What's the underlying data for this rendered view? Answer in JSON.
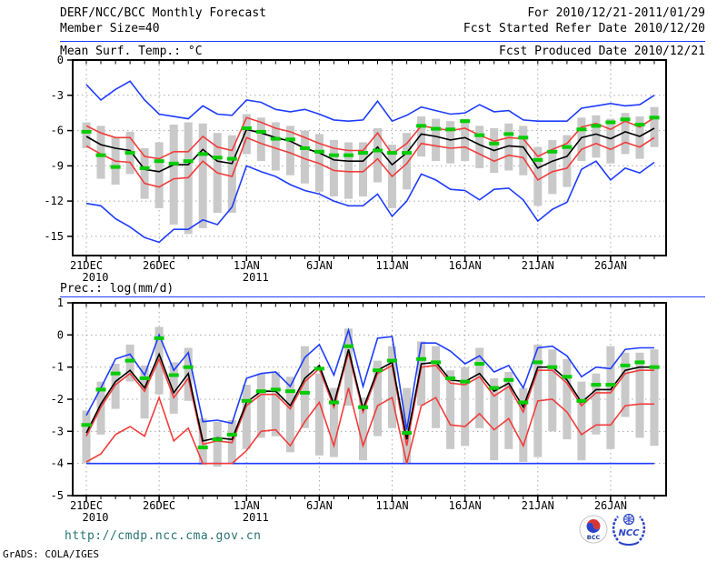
{
  "header": {
    "title": "DERF/NCC/BCC Monthly Forecast",
    "for_range": "For 2010/12/21-2011/01/29",
    "member_size": "Member Size=40",
    "fcst_started": "Fcst Started Refer Date 2010/12/20",
    "fcst_produced": "Fcst Produced Date 2010/12/21"
  },
  "footer": {
    "url": "http://cmdp.ncc.cma.gov.cn",
    "grads_credit": "GrADS: COLA/IGES",
    "logos": {
      "bcc": "BCC",
      "ncc": "NCC"
    }
  },
  "colors": {
    "line_blue": "#1e3cff",
    "line_red": "#f23c3c",
    "line_black": "#000000",
    "marker_green": "#00cc00",
    "bar_gray": "#c9c9c9",
    "grid_gray": "#a8a8a8",
    "rule_blue": "#1e3cff",
    "url_teal": "#2a7474"
  },
  "chart_data": [
    {
      "id": "temp",
      "type": "line",
      "title": "Mean Surf. Temp.: °C",
      "xlabel": "",
      "ylabel": "",
      "grid": true,
      "legend_position": "none",
      "n_days": 40,
      "ylim": [
        0,
        -16.63
      ],
      "y_ticks": [
        0,
        -3,
        -6,
        -9,
        -12,
        -15
      ],
      "y_gridlines": [
        -3,
        -6,
        -9,
        -12,
        -15
      ],
      "x_ticks": [
        {
          "i": 0,
          "label": "21DEC",
          "sub": "2010"
        },
        {
          "i": 5,
          "label": "26DEC"
        },
        {
          "i": 11,
          "label": "1JAN",
          "sub": "2011"
        },
        {
          "i": 16,
          "label": "6JAN"
        },
        {
          "i": 21,
          "label": "11JAN"
        },
        {
          "i": 26,
          "label": "16JAN"
        },
        {
          "i": 31,
          "label": "21JAN"
        },
        {
          "i": 36,
          "label": "26JAN"
        }
      ],
      "series": [
        {
          "id": "ens-max",
          "label": "ensemble max",
          "color": "#1e3cff",
          "values": [
            -2.1,
            -3.4,
            -2.5,
            -1.8,
            -3.4,
            -4.6,
            -4.8,
            -5.0,
            -3.9,
            -4.6,
            -4.7,
            -3.4,
            -3.6,
            -4.2,
            -4.4,
            -4.2,
            -4.6,
            -5.1,
            -5.2,
            -5.1,
            -3.5,
            -5.2,
            -4.7,
            -4.0,
            -4.3,
            -4.6,
            -4.5,
            -3.8,
            -4.4,
            -4.3,
            -5.1,
            -5.2,
            -5.2,
            -5.2,
            -4.1,
            -3.9,
            -3.7,
            -3.9,
            -3.8,
            -3.0
          ]
        },
        {
          "id": "ens-min",
          "label": "ensemble min",
          "color": "#1e3cff",
          "values": [
            -12.2,
            -12.4,
            -13.5,
            -14.2,
            -15.1,
            -15.5,
            -14.4,
            -14.4,
            -13.6,
            -14.0,
            -12.5,
            -9.0,
            -9.5,
            -9.9,
            -10.6,
            -11.1,
            -11.4,
            -12.0,
            -12.4,
            -12.4,
            -11.4,
            -13.3,
            -12.0,
            -9.7,
            -10.2,
            -11.0,
            -11.1,
            -11.9,
            -11.0,
            -10.9,
            -11.9,
            -13.7,
            -12.7,
            -12.1,
            -9.3,
            -8.6,
            -10.2,
            -9.2,
            -9.6,
            -8.7
          ]
        },
        {
          "id": "spread-upper",
          "label": "mean plus spread",
          "color": "#f23c3c",
          "values": [
            -5.6,
            -6.2,
            -6.6,
            -6.6,
            -8.2,
            -8.4,
            -7.8,
            -7.8,
            -6.5,
            -7.4,
            -7.7,
            -4.9,
            -5.3,
            -5.8,
            -6.1,
            -6.6,
            -7.1,
            -7.5,
            -7.7,
            -7.7,
            -6.2,
            -8.0,
            -7.1,
            -5.6,
            -5.8,
            -6.0,
            -5.8,
            -6.4,
            -6.9,
            -6.6,
            -6.7,
            -8.2,
            -7.6,
            -7.1,
            -5.7,
            -5.4,
            -5.9,
            -5.2,
            -5.7,
            -4.9
          ]
        },
        {
          "id": "spread-lower",
          "label": "mean minus spread",
          "color": "#f23c3c",
          "values": [
            -7.3,
            -8.0,
            -8.6,
            -8.7,
            -10.5,
            -10.8,
            -10.1,
            -10.0,
            -8.6,
            -9.6,
            -9.9,
            -6.6,
            -7.1,
            -7.5,
            -7.9,
            -8.4,
            -8.8,
            -9.4,
            -9.5,
            -9.5,
            -8.4,
            -9.9,
            -8.8,
            -7.1,
            -7.3,
            -7.5,
            -7.4,
            -8.0,
            -8.6,
            -8.1,
            -8.3,
            -10.2,
            -9.5,
            -9.2,
            -7.6,
            -7.1,
            -7.6,
            -7.0,
            -7.4,
            -6.6
          ]
        },
        {
          "id": "ens-mean",
          "label": "ensemble mean",
          "color": "#000000",
          "values": [
            -6.5,
            -7.2,
            -7.5,
            -7.7,
            -9.3,
            -9.5,
            -8.9,
            -8.9,
            -7.6,
            -8.6,
            -8.8,
            -5.9,
            -6.2,
            -6.6,
            -6.9,
            -7.5,
            -7.9,
            -8.5,
            -8.6,
            -8.6,
            -7.4,
            -8.9,
            -7.9,
            -6.3,
            -6.5,
            -6.8,
            -6.6,
            -7.2,
            -7.7,
            -7.3,
            -7.4,
            -9.2,
            -8.6,
            -8.2,
            -6.6,
            -6.3,
            -6.7,
            -6.1,
            -6.5,
            -5.8
          ]
        }
      ],
      "markers": {
        "id": "green-dash",
        "label": "green dash marker",
        "color": "#00cc00",
        "values": [
          -6.1,
          -8.1,
          -9.1,
          -7.9,
          -9.2,
          -8.6,
          -8.8,
          -8.6,
          -8.0,
          -8.3,
          -8.4,
          -5.8,
          -6.1,
          -6.7,
          -6.75,
          -7.5,
          -7.8,
          -8.1,
          -8.1,
          -7.9,
          -7.7,
          -7.9,
          -7.9,
          -5.6,
          -5.85,
          -5.9,
          -5.2,
          -6.4,
          -7.1,
          -6.3,
          -6.6,
          -8.5,
          -7.8,
          -7.4,
          -5.9,
          -5.6,
          -5.3,
          -5.05,
          -5.5,
          -4.9
        ]
      },
      "bars": {
        "id": "spread-bar",
        "label": "ensemble spread bar",
        "color": "#c9c9c9",
        "top": [
          -5.3,
          -5.6,
          -6.6,
          -6.1,
          -7.5,
          -7.0,
          -5.5,
          -5.3,
          -5.4,
          -6.2,
          -6.4,
          -4.6,
          -4.9,
          -5.3,
          -5.6,
          -6.0,
          -6.3,
          -6.8,
          -7.0,
          -7.0,
          -5.8,
          -7.2,
          -6.2,
          -4.8,
          -5.0,
          -5.2,
          -5.0,
          -5.6,
          -5.8,
          -5.4,
          -5.6,
          -7.4,
          -6.8,
          -6.4,
          -4.9,
          -4.7,
          -5.0,
          -4.5,
          -4.8,
          -4.0
        ],
        "bottom": [
          -7.5,
          -10.1,
          -10.6,
          -9.7,
          -11.8,
          -12.6,
          -14.0,
          -14.8,
          -14.3,
          -13.0,
          -13.0,
          -8.0,
          -8.6,
          -9.4,
          -9.8,
          -10.5,
          -11.2,
          -11.6,
          -11.8,
          -11.6,
          -10.4,
          -12.6,
          -11.0,
          -8.2,
          -8.6,
          -8.8,
          -8.6,
          -9.2,
          -9.6,
          -9.4,
          -9.8,
          -12.4,
          -11.4,
          -10.8,
          -8.6,
          -8.3,
          -8.8,
          -8.0,
          -8.4,
          -7.4
        ]
      }
    },
    {
      "id": "prec",
      "type": "line",
      "title": "Prec.: log(mm/d)",
      "xlabel": "",
      "ylabel": "",
      "grid": true,
      "legend_position": "none",
      "n_days": 40,
      "ylim": [
        1,
        -5
      ],
      "y_ticks": [
        1,
        0,
        -1,
        -2,
        -3,
        -4,
        -5
      ],
      "y_gridlines": [
        0,
        -1,
        -2,
        -3,
        -4
      ],
      "x_ticks": [
        {
          "i": 0,
          "label": "21DEC",
          "sub": "2010"
        },
        {
          "i": 5,
          "label": "26DEC"
        },
        {
          "i": 11,
          "label": "1JAN",
          "sub": "2011"
        },
        {
          "i": 16,
          "label": "6JAN"
        },
        {
          "i": 21,
          "label": "11JAN"
        },
        {
          "i": 26,
          "label": "16JAN"
        },
        {
          "i": 31,
          "label": "21JAN"
        },
        {
          "i": 36,
          "label": "26JAN"
        }
      ],
      "series": [
        {
          "id": "ens-max",
          "label": "ensemble max",
          "color": "#1e3cff",
          "values": [
            -2.5,
            -1.65,
            -0.75,
            -0.6,
            -1.25,
            0.0,
            -1.1,
            -0.55,
            -2.7,
            -2.65,
            -2.75,
            -1.35,
            -1.2,
            -1.15,
            -1.6,
            -0.7,
            -0.3,
            -1.25,
            0.15,
            -1.6,
            -0.1,
            -0.05,
            -2.95,
            -0.25,
            -0.25,
            -0.5,
            -0.9,
            -0.65,
            -1.15,
            -0.95,
            -1.65,
            -0.4,
            -0.35,
            -0.65,
            -1.3,
            -1.0,
            -1.05,
            -0.45,
            -0.4,
            -0.4
          ]
        },
        {
          "id": "ens-min",
          "label": "ensemble min",
          "color": "#1e3cff",
          "values": [
            -4.0,
            -4.0,
            -4.0,
            -4.0,
            -4.0,
            -4.0,
            -4.0,
            -4.0,
            -4.0,
            -4.0,
            -4.0,
            -4.0,
            -4.0,
            -4.0,
            -4.0,
            -4.0,
            -4.0,
            -4.0,
            -4.0,
            -4.0,
            -4.0,
            -4.0,
            -4.0,
            -4.0,
            -4.0,
            -4.0,
            -4.0,
            -4.0,
            -4.0,
            -4.0,
            -4.0,
            -4.0,
            -4.0,
            -4.0,
            -4.0,
            -4.0,
            -4.0,
            -4.0,
            -4.0,
            -4.0
          ]
        },
        {
          "id": "spread-upper",
          "label": "mean plus spread",
          "color": "#f23c3c",
          "values": [
            -3.15,
            -2.25,
            -1.55,
            -1.2,
            -1.75,
            -0.75,
            -1.95,
            -1.35,
            -3.4,
            -3.3,
            -3.35,
            -2.2,
            -1.85,
            -1.85,
            -2.3,
            -1.45,
            -1.05,
            -2.25,
            -0.55,
            -2.4,
            -1.2,
            -0.95,
            -3.45,
            -1.0,
            -0.95,
            -1.5,
            -1.55,
            -1.3,
            -1.9,
            -1.6,
            -2.4,
            -1.1,
            -1.1,
            -1.5,
            -2.2,
            -1.8,
            -1.8,
            -1.2,
            -1.1,
            -1.1
          ]
        },
        {
          "id": "spread-lower",
          "label": "mean minus spread",
          "color": "#f23c3c",
          "values": [
            -3.95,
            -3.7,
            -3.1,
            -2.85,
            -3.15,
            -1.95,
            -3.3,
            -2.9,
            -4.0,
            -4.0,
            -4.0,
            -3.6,
            -3.0,
            -2.95,
            -3.45,
            -2.7,
            -2.1,
            -3.45,
            -1.65,
            -3.45,
            -2.2,
            -1.95,
            -4.0,
            -2.2,
            -1.95,
            -2.8,
            -2.85,
            -2.45,
            -2.95,
            -2.6,
            -3.45,
            -2.05,
            -2.0,
            -2.4,
            -3.1,
            -2.8,
            -2.8,
            -2.2,
            -2.15,
            -2.15
          ]
        },
        {
          "id": "ens-mean",
          "label": "ensemble mean",
          "color": "#000000",
          "values": [
            -3.05,
            -2.15,
            -1.45,
            -1.1,
            -1.65,
            -0.6,
            -1.8,
            -1.2,
            -3.3,
            -3.2,
            -3.25,
            -2.1,
            -1.75,
            -1.75,
            -2.2,
            -1.35,
            -0.95,
            -2.15,
            -0.45,
            -2.3,
            -1.1,
            -0.85,
            -3.25,
            -0.9,
            -0.85,
            -1.4,
            -1.45,
            -1.2,
            -1.75,
            -1.5,
            -2.25,
            -1.0,
            -1.0,
            -1.4,
            -2.1,
            -1.7,
            -1.7,
            -1.1,
            -1.0,
            -1.0
          ]
        }
      ],
      "markers": {
        "id": "green-dash",
        "label": "green dash marker",
        "color": "#00cc00",
        "values": [
          -2.8,
          -1.7,
          -1.2,
          -0.8,
          -1.35,
          -0.1,
          -1.25,
          -1.0,
          -3.5,
          -3.25,
          -3.1,
          -2.05,
          -1.75,
          -1.7,
          -1.75,
          -1.8,
          -1.05,
          -2.1,
          -0.35,
          -2.25,
          -1.1,
          -0.8,
          -3.05,
          -0.75,
          -0.85,
          -1.35,
          -1.45,
          -0.9,
          -1.65,
          -1.4,
          -2.1,
          -0.85,
          -1.0,
          -1.3,
          -2.05,
          -1.55,
          -1.55,
          -0.95,
          -0.85,
          -1.0
        ]
      },
      "bars": {
        "id": "spread-bar",
        "label": "ensemble spread bar",
        "color": "#c9c9c9",
        "top": [
          -2.35,
          -1.45,
          -0.9,
          -0.3,
          -0.95,
          0.25,
          -0.85,
          -0.4,
          -2.6,
          -2.7,
          -2.65,
          -1.55,
          -1.2,
          -1.15,
          -1.3,
          -0.35,
          -1.2,
          -1.65,
          0.2,
          -1.95,
          -0.8,
          -0.35,
          -1.65,
          -0.2,
          -0.35,
          -1.1,
          -1.0,
          -0.4,
          -1.35,
          -1.15,
          -1.65,
          -0.3,
          -0.45,
          -0.75,
          -1.45,
          -1.2,
          -0.35,
          -0.55,
          -0.55,
          -0.45
        ],
        "bottom": [
          -4.0,
          -3.1,
          -2.3,
          -1.45,
          -2.6,
          -1.85,
          -2.45,
          -2.05,
          -4.05,
          -4.1,
          -4.0,
          -3.55,
          -3.2,
          -3.15,
          -3.65,
          -2.9,
          -3.75,
          -3.8,
          -2.2,
          -3.9,
          -3.15,
          -2.9,
          -4.0,
          -2.2,
          -2.9,
          -3.55,
          -3.45,
          -2.9,
          -3.9,
          -3.55,
          -3.95,
          -3.8,
          -3.0,
          -3.25,
          -3.9,
          -3.1,
          -3.55,
          -2.55,
          -3.2,
          -3.45
        ]
      }
    }
  ]
}
